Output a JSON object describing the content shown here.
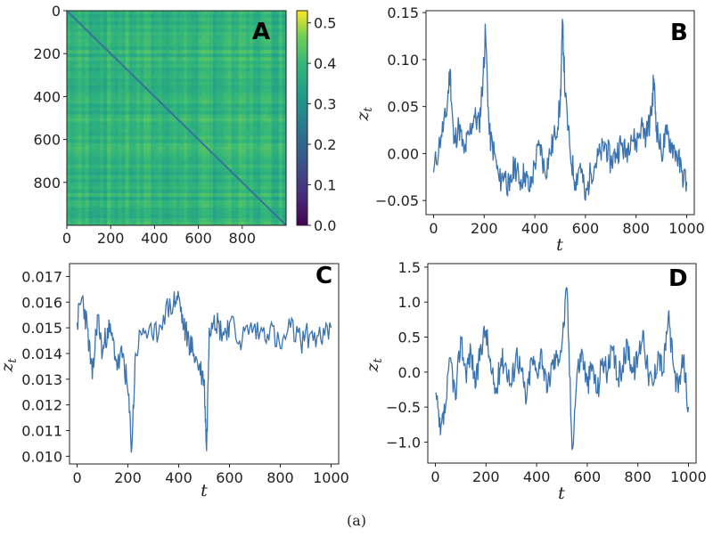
{
  "caption": "(a)",
  "chart_data": [
    {
      "panel": "A",
      "type": "heatmap",
      "x_ticks": [
        "0",
        "200",
        "400",
        "600",
        "800"
      ],
      "y_ticks": [
        "0",
        "200",
        "400",
        "600",
        "800"
      ],
      "xlim": [
        0,
        1000
      ],
      "ylim": [
        0,
        1000
      ],
      "colorbar": {
        "colormap": "viridis",
        "range": [
          0,
          0.53
        ],
        "ticks": [
          "0.0",
          "0.1",
          "0.2",
          "0.3",
          "0.4",
          "0.5"
        ]
      },
      "values_summary": {
        "off_diagonal_min": 0.33,
        "off_diagonal_max": 0.45,
        "diagonal_value": 0.25
      }
    },
    {
      "panel": "B",
      "type": "line",
      "xlabel": "t",
      "ylabel": "z_t",
      "xlim": [
        -30,
        1030
      ],
      "ylim": [
        -0.065,
        0.152
      ],
      "x_ticks": [
        "0",
        "200",
        "400",
        "600",
        "800",
        "1000"
      ],
      "y_ticks": [
        "−0.05",
        "0.00",
        "0.05",
        "0.10",
        "0.15"
      ],
      "color": "#3b73b0",
      "series": [
        {
          "x": [
            0,
            30,
            50,
            65,
            80,
            100,
            120,
            140,
            160,
            180,
            195,
            205,
            220,
            240,
            260,
            280,
            300,
            320,
            340,
            360,
            380,
            400,
            420,
            440,
            460,
            480,
            500,
            510,
            520,
            540,
            560,
            580,
            600,
            620,
            640,
            660,
            680,
            700,
            720,
            740,
            760,
            780,
            800,
            820,
            840,
            860,
            870,
            880,
            900,
            920,
            940,
            960,
            980,
            1000
          ],
          "y": [
            -0.02,
            0.02,
            0.04,
            0.09,
            0.01,
            0.03,
            0.0,
            0.02,
            0.04,
            0.03,
            0.08,
            0.13,
            0.02,
            0.0,
            -0.03,
            -0.02,
            -0.04,
            -0.01,
            -0.03,
            -0.02,
            -0.04,
            -0.01,
            0.01,
            -0.02,
            0.0,
            0.02,
            0.05,
            0.14,
            0.06,
            0.0,
            -0.03,
            -0.01,
            -0.05,
            -0.02,
            -0.01,
            0.0,
            0.01,
            -0.01,
            0.0,
            0.01,
            0.0,
            0.02,
            0.01,
            0.03,
            0.02,
            0.04,
            0.08,
            0.03,
            0.0,
            0.02,
            0.01,
            0.0,
            -0.02,
            -0.03
          ]
        }
      ]
    },
    {
      "panel": "C",
      "type": "line",
      "xlabel": "t",
      "ylabel": "z_t",
      "xlim": [
        -30,
        1030
      ],
      "ylim": [
        0.0097,
        0.0175
      ],
      "x_ticks": [
        "0",
        "200",
        "400",
        "600",
        "800",
        "1000"
      ],
      "y_ticks": [
        "0.010",
        "0.011",
        "0.012",
        "0.013",
        "0.014",
        "0.015",
        "0.016",
        "0.017"
      ],
      "color": "#3b73b0",
      "series": [
        {
          "x": [
            0,
            20,
            40,
            60,
            80,
            100,
            120,
            140,
            160,
            180,
            200,
            215,
            230,
            260,
            300,
            340,
            380,
            400,
            420,
            440,
            460,
            480,
            500,
            510,
            520,
            540,
            560,
            580,
            600,
            640,
            680,
            720,
            760,
            800,
            840,
            880,
            920,
            960,
            1000
          ],
          "y": [
            0.0152,
            0.0162,
            0.015,
            0.013,
            0.0155,
            0.014,
            0.015,
            0.0145,
            0.0135,
            0.014,
            0.0125,
            0.0103,
            0.014,
            0.015,
            0.0145,
            0.0155,
            0.016,
            0.0162,
            0.015,
            0.0145,
            0.014,
            0.0135,
            0.013,
            0.0102,
            0.015,
            0.0155,
            0.015,
            0.0148,
            0.0152,
            0.0145,
            0.015,
            0.0148,
            0.015,
            0.0142,
            0.015,
            0.0145,
            0.0148,
            0.0145,
            0.015
          ]
        }
      ]
    },
    {
      "panel": "D",
      "type": "line",
      "xlabel": "t",
      "ylabel": "z_t",
      "xlim": [
        -30,
        1030
      ],
      "ylim": [
        -1.3,
        1.55
      ],
      "x_ticks": [
        "0",
        "200",
        "400",
        "600",
        "800",
        "1000"
      ],
      "y_ticks": [
        "−1.0",
        "−0.5",
        "0.0",
        "0.5",
        "1.0",
        "1.5"
      ],
      "color": "#3b73b0",
      "series": [
        {
          "x": [
            0,
            20,
            40,
            60,
            80,
            100,
            120,
            140,
            160,
            180,
            200,
            220,
            240,
            260,
            280,
            300,
            320,
            340,
            360,
            380,
            400,
            420,
            440,
            460,
            480,
            500,
            520,
            540,
            560,
            580,
            600,
            620,
            640,
            660,
            680,
            700,
            720,
            740,
            760,
            780,
            800,
            820,
            840,
            860,
            880,
            900,
            920,
            940,
            960,
            980,
            1000
          ],
          "y": [
            -0.3,
            -0.9,
            -0.5,
            0.2,
            -0.4,
            0.5,
            0.0,
            0.3,
            -0.2,
            0.4,
            0.6,
            0.0,
            -0.3,
            0.2,
            0.1,
            -0.2,
            0.3,
            0.0,
            -0.4,
            0.2,
            0.0,
            0.3,
            -0.3,
            0.1,
            0.2,
            0.4,
            1.2,
            -1.1,
            0.0,
            0.3,
            -0.2,
            0.1,
            -0.3,
            0.2,
            0.0,
            0.3,
            -0.1,
            0.1,
            0.4,
            0.0,
            0.2,
            0.6,
            0.0,
            -0.2,
            0.3,
            0.0,
            0.8,
            0.1,
            -0.3,
            0.2,
            -0.5
          ]
        }
      ]
    }
  ]
}
